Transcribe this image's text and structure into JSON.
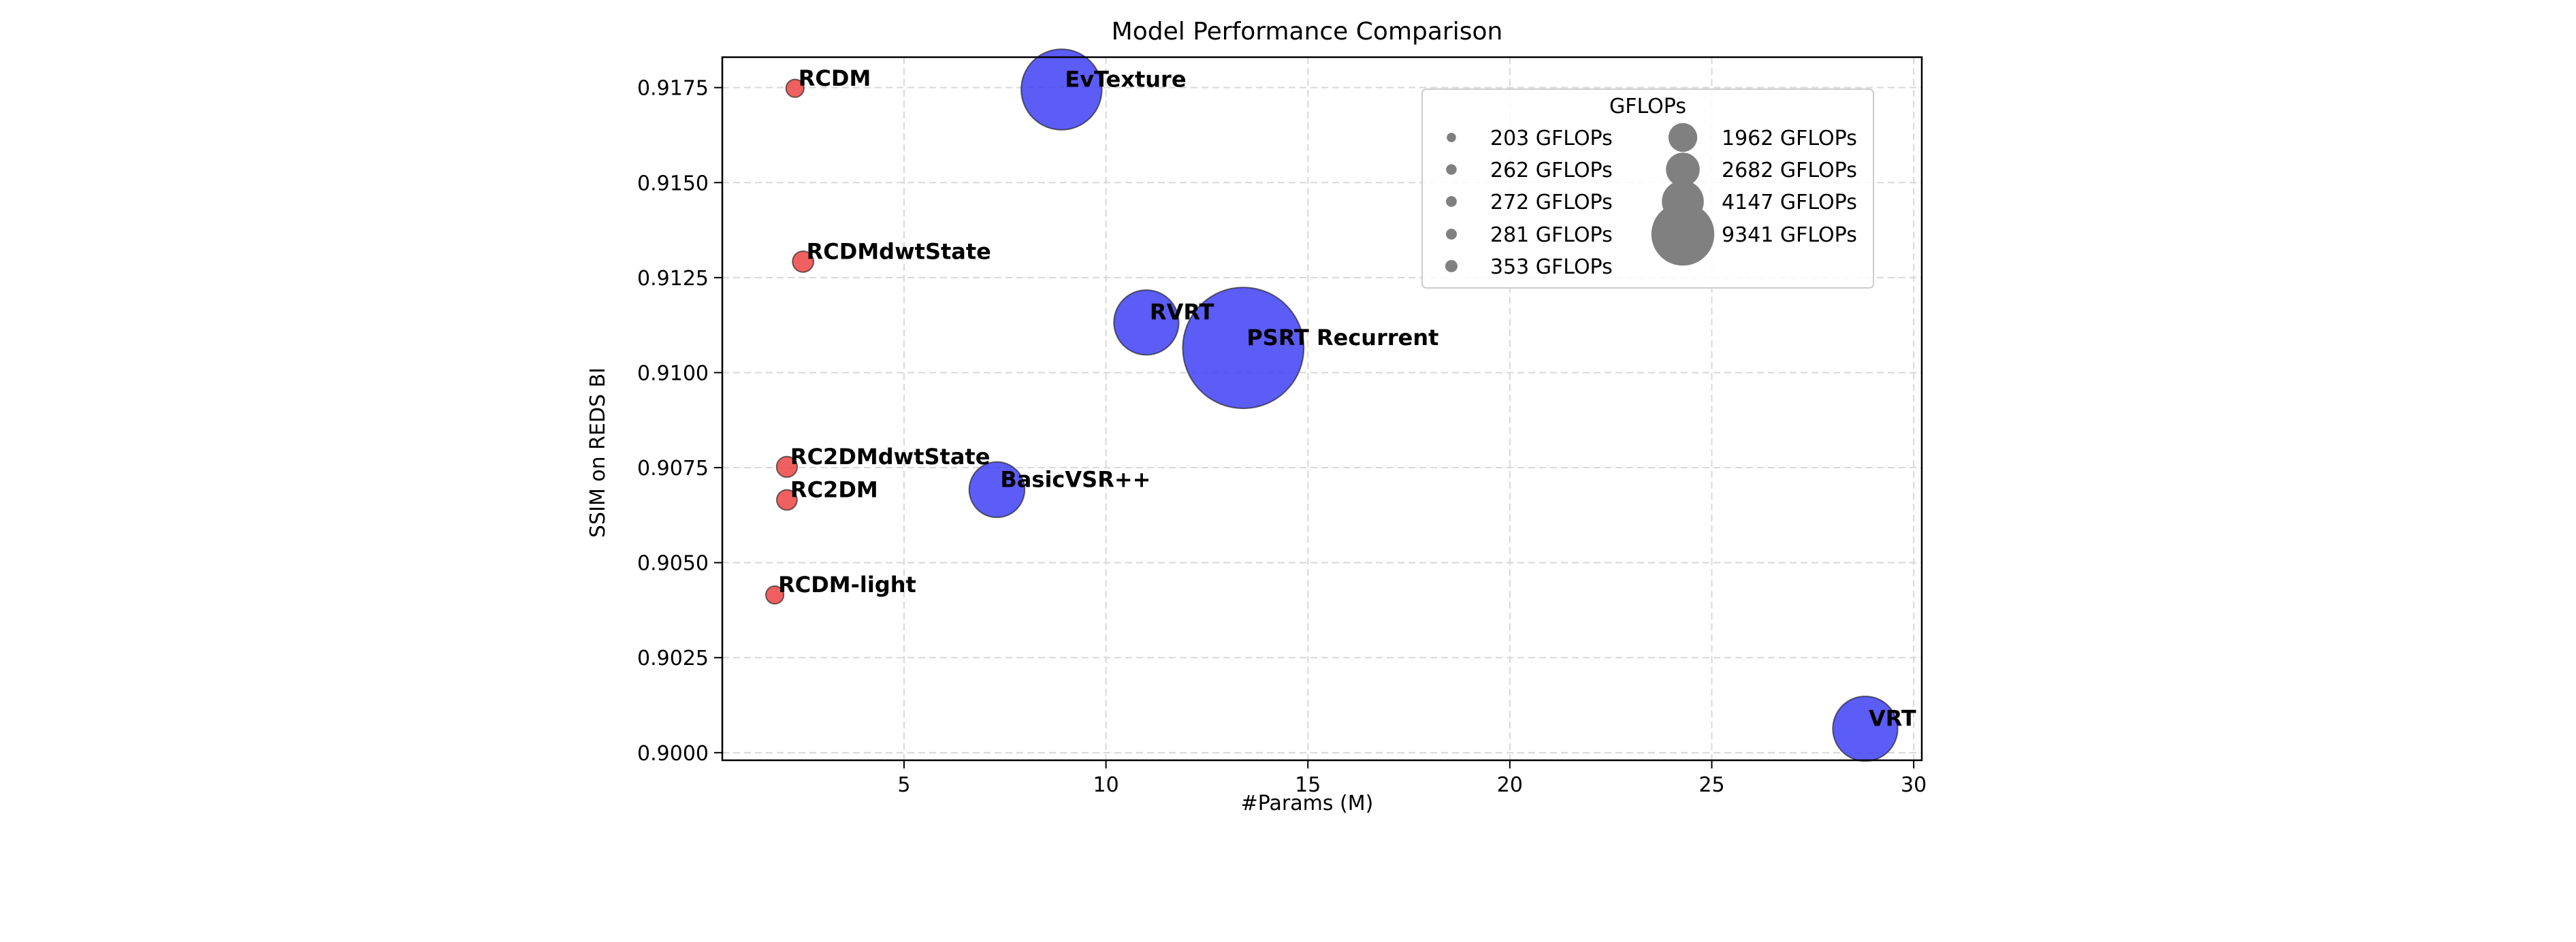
{
  "chart_data": {
    "type": "scatter",
    "title": "Model Performance Comparison",
    "xlabel": "#Params (M)",
    "ylabel": "SSIM on REDS BI",
    "xlim": [
      0.5,
      30.2
    ],
    "ylim": [
      0.8998,
      0.9183
    ],
    "xticks": [
      5,
      10,
      15,
      20,
      25,
      30
    ],
    "yticks": [
      0.9,
      0.9025,
      0.905,
      0.9075,
      0.91,
      0.9125,
      0.915,
      0.9175
    ],
    "xtick_labels": [
      "5",
      "10",
      "15",
      "20",
      "25",
      "30"
    ],
    "ytick_labels": [
      "0.9000",
      "0.9025",
      "0.9050",
      "0.9075",
      "0.9100",
      "0.9125",
      "0.9150",
      "0.9175"
    ],
    "grid": true,
    "colors": {
      "ours": "#ef4444",
      "baseline": "#4040f5",
      "legend_marker": "#808080"
    },
    "points": [
      {
        "label": "RCDM",
        "x": 2.3,
        "y": 0.91748,
        "gflops": 203,
        "group": "ours"
      },
      {
        "label": "RCDMdwtState",
        "x": 2.5,
        "y": 0.91292,
        "gflops": 281,
        "group": "ours"
      },
      {
        "label": "RC2DMdwtState",
        "x": 2.1,
        "y": 0.90752,
        "gflops": 272,
        "group": "ours"
      },
      {
        "label": "RC2DM",
        "x": 2.1,
        "y": 0.90665,
        "gflops": 262,
        "group": "ours"
      },
      {
        "label": "RCDM-light",
        "x": 1.8,
        "y": 0.90415,
        "gflops": 203,
        "group": "ours"
      },
      {
        "label": "EvTexture",
        "x": 8.9,
        "y": 0.91745,
        "gflops": 4147,
        "group": "baseline"
      },
      {
        "label": "RVRT",
        "x": 11.0,
        "y": 0.91132,
        "gflops": 2682,
        "group": "baseline"
      },
      {
        "label": "PSRT Recurrent",
        "x": 13.4,
        "y": 0.91065,
        "gflops": 9341,
        "group": "baseline"
      },
      {
        "label": "BasicVSR++",
        "x": 7.3,
        "y": 0.90692,
        "gflops": 1962,
        "group": "baseline"
      },
      {
        "label": "VRT",
        "x": 28.8,
        "y": 0.90063,
        "gflops": 2682,
        "group": "baseline"
      }
    ],
    "legend": {
      "title": "GFLOPs",
      "placement": "upper-right",
      "entries": [
        {
          "label": "203 GFLOPs",
          "gflops": 203
        },
        {
          "label": "262 GFLOPs",
          "gflops": 262
        },
        {
          "label": "272 GFLOPs",
          "gflops": 272
        },
        {
          "label": "281 GFLOPs",
          "gflops": 281
        },
        {
          "label": "353 GFLOPs",
          "gflops": 353
        },
        {
          "label": "1962 GFLOPs",
          "gflops": 1962
        },
        {
          "label": "2682 GFLOPs",
          "gflops": 2682
        },
        {
          "label": "4147 GFLOPs",
          "gflops": 4147
        },
        {
          "label": "9341 GFLOPs",
          "gflops": 9341
        }
      ]
    }
  }
}
